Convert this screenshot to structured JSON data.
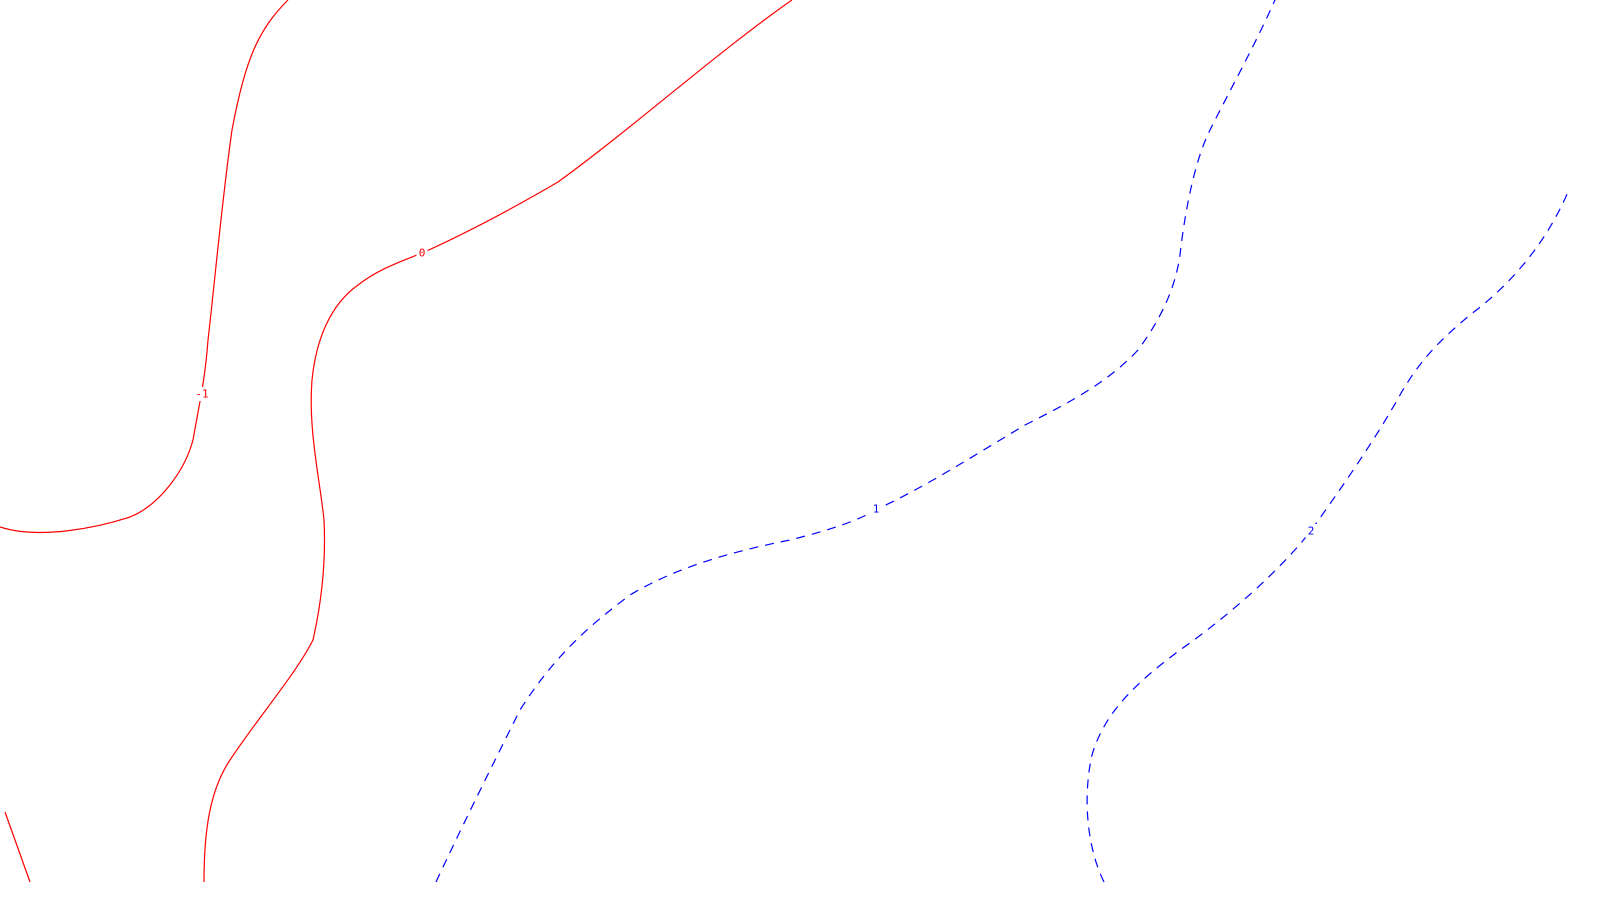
{
  "chart_data": {
    "type": "contour",
    "title": "",
    "xlabel": "",
    "ylabel": "",
    "grid": false,
    "legend": false,
    "colors": {
      "negative_and_zero": "#ff0000",
      "positive": "#0000ff",
      "background": "#ffffff"
    },
    "line_styles": {
      "negative_and_zero": "solid",
      "positive": "dashed"
    },
    "levels": [
      {
        "value": -1,
        "label": "-1"
      },
      {
        "value": 0,
        "label": "0"
      },
      {
        "value": 1,
        "label": "1"
      },
      {
        "value": 2,
        "label": "2"
      }
    ]
  }
}
